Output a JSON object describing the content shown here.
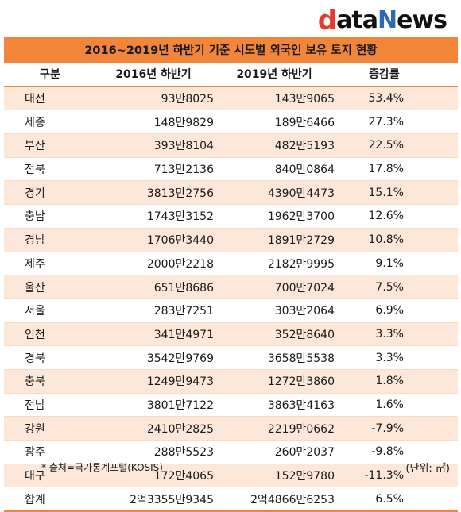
{
  "logo": {
    "part1": "d",
    "part2": "ata",
    "part3": "N",
    "part4": "ews"
  },
  "title": "2016~2019년 하반기 기준 시도별 외국인 보유 토지 현황",
  "headers": [
    "구분",
    "2016년 하반기",
    "2019년 하반기",
    "증감률"
  ],
  "rows": [
    [
      "대전",
      "93만8025",
      "143만9065",
      "53.4%"
    ],
    [
      "세종",
      "148만9829",
      "189만6466",
      "27.3%"
    ],
    [
      "부산",
      "393만8104",
      "482만5193",
      "22.5%"
    ],
    [
      "전북",
      "713만2136",
      "840만0864",
      "17.8%"
    ],
    [
      "경기",
      "3813만2756",
      "4390만4473",
      "15.1%"
    ],
    [
      "충남",
      "1743만3152",
      "1962만3700",
      "12.6%"
    ],
    [
      "경남",
      "1706만3440",
      "1891만2729",
      "10.8%"
    ],
    [
      "제주",
      "2000만2218",
      "2182만9995",
      "9.1%"
    ],
    [
      "울산",
      "651만8686",
      "700만7024",
      "7.5%"
    ],
    [
      "서울",
      "283만7251",
      "303만2064",
      "6.9%"
    ],
    [
      "인천",
      "341만4971",
      "352만8640",
      "3.3%"
    ],
    [
      "경북",
      "3542만9769",
      "3658만5538",
      "3.3%"
    ],
    [
      "충북",
      "1249만9473",
      "1272만3860",
      "1.8%"
    ],
    [
      "전남",
      "3801만7122",
      "3863만4163",
      "1.6%"
    ],
    [
      "강원",
      "2410만2825",
      "2219만0662",
      "-7.9%"
    ],
    [
      "광주",
      "288만5523",
      "260만2037",
      "-9.8%"
    ],
    [
      "대구",
      "172만4065",
      "152만9780",
      "-11.3%"
    ],
    [
      "합계",
      "2억3355만9345",
      "2억4866만6253",
      "6.5%"
    ]
  ],
  "source": "* 출처=국가통계포털(KOSIS)",
  "unit": "(단위: ㎡)",
  "colors": {
    "accent": "#f1863b",
    "stripe": "#fde7d9",
    "logo_red": "#e8392e",
    "logo_blue": "#2f68b8"
  }
}
